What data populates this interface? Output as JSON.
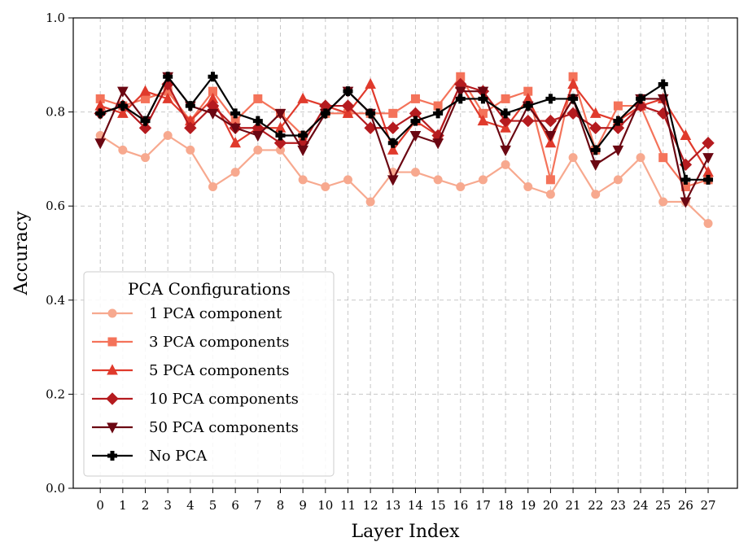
{
  "chart_data": {
    "type": "line",
    "title": "",
    "xlabel": "Layer Index",
    "ylabel": "Accuracy",
    "ylim": [
      0.0,
      1.0
    ],
    "yticks": [
      "0.0",
      "0.2",
      "0.4",
      "0.6",
      "0.8",
      "1.0"
    ],
    "x": [
      0,
      1,
      2,
      3,
      4,
      5,
      6,
      7,
      8,
      9,
      10,
      11,
      12,
      13,
      14,
      15,
      16,
      17,
      18,
      19,
      20,
      21,
      22,
      23,
      24,
      25,
      26,
      27
    ],
    "grid": true,
    "legend": {
      "title": "PCA Configurations",
      "placement": "lower-left"
    },
    "series": [
      {
        "name": "1 PCA component",
        "color": "#f7a98f",
        "marker": "circle",
        "values": [
          0.75,
          0.719,
          0.703,
          0.75,
          0.719,
          0.641,
          0.672,
          0.719,
          0.719,
          0.656,
          0.641,
          0.656,
          0.609,
          0.672,
          0.672,
          0.656,
          0.641,
          0.656,
          0.688,
          0.641,
          0.625,
          0.703,
          0.625,
          0.656,
          0.703,
          0.609,
          0.609,
          0.563
        ]
      },
      {
        "name": "3 PCA components",
        "color": "#f4735a",
        "marker": "square",
        "values": [
          0.828,
          0.813,
          0.828,
          0.844,
          0.781,
          0.844,
          0.781,
          0.828,
          0.797,
          0.75,
          0.797,
          0.797,
          0.797,
          0.797,
          0.828,
          0.813,
          0.875,
          0.797,
          0.828,
          0.844,
          0.656,
          0.875,
          0.719,
          0.813,
          0.813,
          0.703,
          0.641,
          0.656
        ]
      },
      {
        "name": "5 PCA components",
        "color": "#e03a2c",
        "marker": "triangle-up",
        "values": [
          0.813,
          0.797,
          0.844,
          0.828,
          0.781,
          0.828,
          0.734,
          0.766,
          0.766,
          0.828,
          0.813,
          0.797,
          0.859,
          0.719,
          0.781,
          0.75,
          0.859,
          0.781,
          0.766,
          0.828,
          0.734,
          0.859,
          0.797,
          0.781,
          0.813,
          0.828,
          0.75,
          0.672
        ]
      },
      {
        "name": "10 PCA components",
        "color": "#b51b1f",
        "marker": "diamond",
        "values": [
          0.797,
          0.813,
          0.766,
          0.859,
          0.766,
          0.813,
          0.766,
          0.766,
          0.734,
          0.734,
          0.813,
          0.813,
          0.766,
          0.766,
          0.797,
          0.75,
          0.859,
          0.844,
          0.781,
          0.781,
          0.781,
          0.797,
          0.766,
          0.766,
          0.813,
          0.797,
          0.688,
          0.734
        ]
      },
      {
        "name": "50 PCA components",
        "color": "#6b0712",
        "marker": "triangle-down",
        "values": [
          0.734,
          0.844,
          0.781,
          0.875,
          0.813,
          0.797,
          0.766,
          0.75,
          0.797,
          0.719,
          0.797,
          0.844,
          0.797,
          0.656,
          0.75,
          0.734,
          0.844,
          0.844,
          0.719,
          0.813,
          0.75,
          0.828,
          0.688,
          0.719,
          0.828,
          0.828,
          0.609,
          0.703
        ]
      },
      {
        "name": "No PCA",
        "color": "#000000",
        "marker": "plus",
        "values": [
          0.797,
          0.813,
          0.781,
          0.875,
          0.813,
          0.875,
          0.797,
          0.781,
          0.75,
          0.75,
          0.797,
          0.844,
          0.797,
          0.734,
          0.781,
          0.797,
          0.828,
          0.828,
          0.797,
          0.813,
          0.828,
          0.828,
          0.719,
          0.781,
          0.828,
          0.859,
          0.656,
          0.656
        ]
      }
    ]
  }
}
